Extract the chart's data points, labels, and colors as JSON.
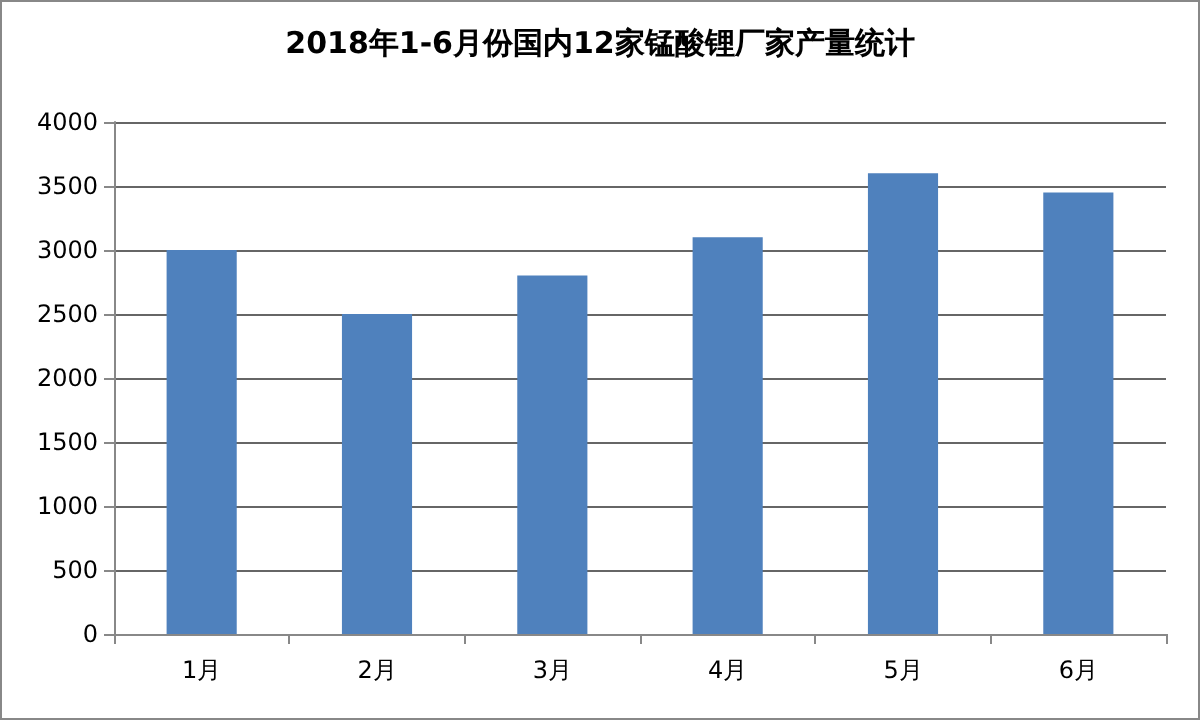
{
  "chart_data": {
    "type": "bar",
    "title": "2018年1-6月份国内12家锰酸锂厂家产量统计",
    "categories": [
      "1月",
      "2月",
      "3月",
      "4月",
      "5月",
      "6月"
    ],
    "values": [
      3000,
      2500,
      2800,
      3100,
      3600,
      3450
    ],
    "color": "#4f81bd",
    "ylim": [
      0,
      4000
    ],
    "yticks": [
      0,
      500,
      1000,
      1500,
      2000,
      2500,
      3000,
      3500,
      4000
    ],
    "grid": "y"
  }
}
